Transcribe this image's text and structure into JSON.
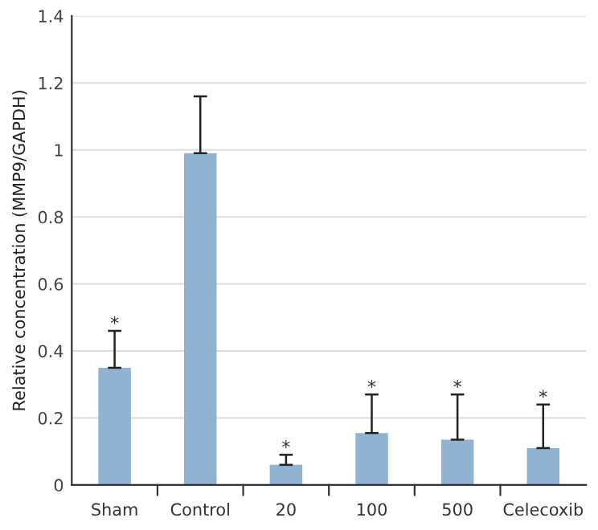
{
  "chart_data": {
    "type": "bar",
    "ylabel": "Relative concentration (MMP9/GAPDH)",
    "categories": [
      "Sham",
      "Control",
      "20",
      "100",
      "500",
      "Celecoxib"
    ],
    "values": [
      0.35,
      0.99,
      0.06,
      0.155,
      0.135,
      0.11
    ],
    "errors": [
      [
        0.35,
        0.46
      ],
      [
        0.99,
        1.16
      ],
      [
        0.06,
        0.09
      ],
      [
        0.155,
        0.27
      ],
      [
        0.135,
        0.27
      ],
      [
        0.11,
        0.24
      ]
    ],
    "color": "#8fb3d0",
    "ylim": [
      0,
      1.4
    ],
    "yticks": [
      0,
      0.2,
      0.4,
      0.6,
      0.8,
      1,
      1.2,
      1.4
    ],
    "grid": "y",
    "value_labels": [
      "*",
      null,
      "*",
      "*",
      "*",
      "*"
    ]
  }
}
